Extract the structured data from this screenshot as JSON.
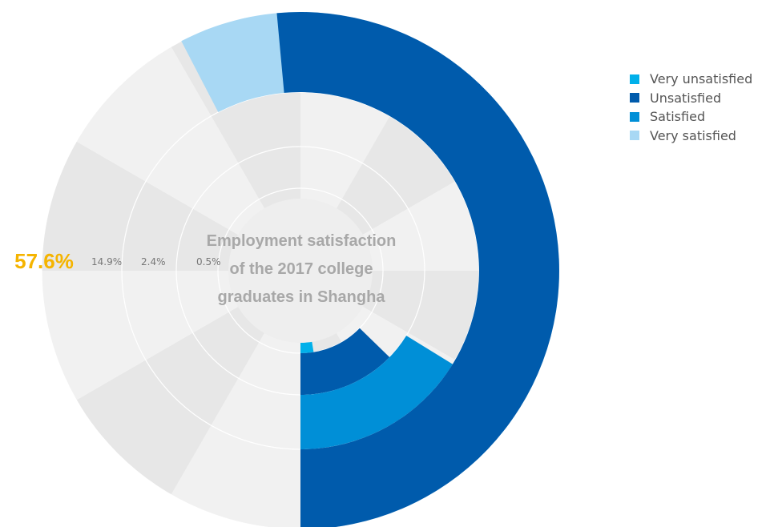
{
  "chart_data": {
    "type": "radial-bar",
    "title": "Employment satisfaction\nof the 2017 college\ngraduates in Shangha",
    "series": [
      {
        "name": "Very unsatisfied",
        "value": 0.5,
        "label": "0.5%",
        "color": "#00b0ea"
      },
      {
        "name": "Unsatisfied",
        "value": 2.4,
        "label": "2.4%",
        "color": "#005bac"
      },
      {
        "name": "Satisfied",
        "value": 14.9,
        "label": "14.9%",
        "color": "#008fd7"
      },
      {
        "name": "Very satisfied",
        "value": 57.6,
        "label": "57.6%",
        "color": "#a8d8f4"
      }
    ],
    "ring_scales": [
      1,
      1,
      0.2,
      0.8
    ],
    "highlight_color": "#f5b400",
    "label_color": "#777777",
    "legend_position": "top-right"
  }
}
